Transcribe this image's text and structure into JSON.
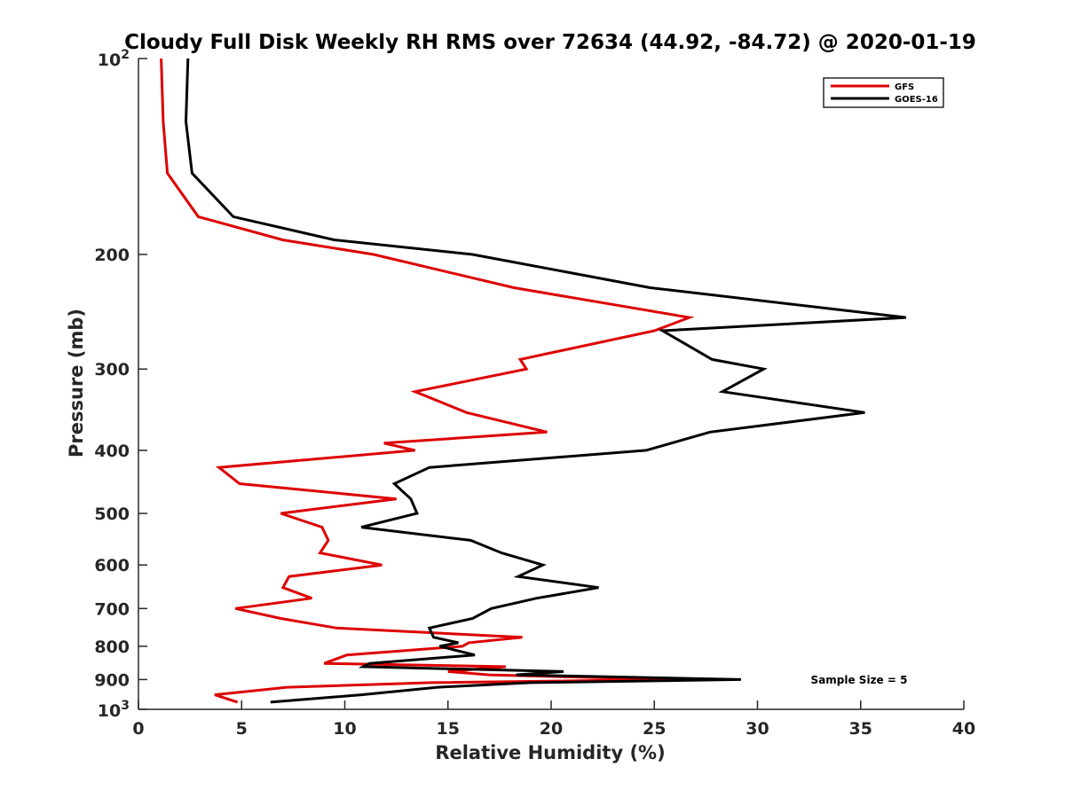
{
  "chart_data": {
    "type": "line",
    "title": "Cloudy Full Disk Weekly RH RMS over 72634 (44.92, -84.72) @ 2020-01-19",
    "xlabel": "Relative Humidity (%)",
    "ylabel": "Pressure (mb)",
    "xlim": [
      0,
      40
    ],
    "ylim": [
      100,
      1000
    ],
    "y_scale": "log",
    "y_reversed": true,
    "x_ticks": [
      0,
      5,
      10,
      15,
      20,
      25,
      30,
      35,
      40
    ],
    "x_tick_labels": [
      "0",
      "5",
      "10",
      "15",
      "20",
      "25",
      "30",
      "35",
      "40"
    ],
    "y_ticks": [
      100,
      200,
      300,
      400,
      500,
      600,
      700,
      800,
      900,
      1000
    ],
    "y_tick_labels": [
      "",
      "200",
      "300",
      "400",
      "500",
      "600",
      "700",
      "800",
      "900",
      ""
    ],
    "y_tick_power_labels": [
      {
        "value": 100,
        "base": "10",
        "exp": "2"
      },
      {
        "value": 1000,
        "base": "10",
        "exp": "3"
      }
    ],
    "grid": false,
    "legend_position": "top-right",
    "annotation": "Sample Size = 5",
    "series": [
      {
        "name": "GFS",
        "color": "#dd0000",
        "points": [
          [
            1.1,
            100
          ],
          [
            1.2,
            125
          ],
          [
            1.4,
            150
          ],
          [
            2.9,
            175
          ],
          [
            7.0,
            190
          ],
          [
            11.4,
            200
          ],
          [
            18.2,
            225
          ],
          [
            26.7,
            250
          ],
          [
            25.0,
            262
          ],
          [
            18.5,
            290
          ],
          [
            18.8,
            300
          ],
          [
            13.4,
            325
          ],
          [
            15.9,
            350
          ],
          [
            19.8,
            375
          ],
          [
            11.9,
            390
          ],
          [
            13.4,
            400
          ],
          [
            3.9,
            425
          ],
          [
            4.9,
            450
          ],
          [
            12.5,
            475
          ],
          [
            6.9,
            500
          ],
          [
            8.9,
            525
          ],
          [
            9.2,
            550
          ],
          [
            8.8,
            575
          ],
          [
            11.8,
            600
          ],
          [
            7.3,
            625
          ],
          [
            7.0,
            650
          ],
          [
            8.4,
            675
          ],
          [
            4.7,
            700
          ],
          [
            6.9,
            725
          ],
          [
            9.6,
            750
          ],
          [
            18.6,
            775
          ],
          [
            16.0,
            790
          ],
          [
            15.7,
            800
          ],
          [
            10.1,
            825
          ],
          [
            9.0,
            850
          ],
          [
            17.8,
            860
          ],
          [
            15.0,
            875
          ],
          [
            17.0,
            885
          ],
          [
            26.0,
            900
          ],
          [
            14.2,
            910
          ],
          [
            7.2,
            925
          ],
          [
            3.7,
            950
          ],
          [
            4.8,
            975
          ]
        ]
      },
      {
        "name": "GOES-16",
        "color": "#000000",
        "points": [
          [
            2.4,
            100
          ],
          [
            2.3,
            125
          ],
          [
            2.6,
            150
          ],
          [
            4.6,
            175
          ],
          [
            9.5,
            190
          ],
          [
            16.2,
            200
          ],
          [
            24.8,
            225
          ],
          [
            37.2,
            250
          ],
          [
            25.4,
            262
          ],
          [
            27.8,
            290
          ],
          [
            30.3,
            300
          ],
          [
            28.3,
            325
          ],
          [
            35.2,
            350
          ],
          [
            27.7,
            375
          ],
          [
            24.6,
            400
          ],
          [
            14.1,
            425
          ],
          [
            12.4,
            450
          ],
          [
            13.2,
            475
          ],
          [
            13.5,
            500
          ],
          [
            10.8,
            525
          ],
          [
            16.1,
            550
          ],
          [
            17.6,
            575
          ],
          [
            19.6,
            600
          ],
          [
            18.4,
            625
          ],
          [
            22.3,
            650
          ],
          [
            19.3,
            675
          ],
          [
            17.1,
            700
          ],
          [
            16.2,
            725
          ],
          [
            14.1,
            750
          ],
          [
            14.3,
            775
          ],
          [
            15.5,
            790
          ],
          [
            14.6,
            800
          ],
          [
            16.3,
            825
          ],
          [
            11.2,
            850
          ],
          [
            10.9,
            860
          ],
          [
            20.6,
            875
          ],
          [
            18.3,
            885
          ],
          [
            29.2,
            900
          ],
          [
            19.0,
            910
          ],
          [
            14.5,
            925
          ],
          [
            10.8,
            950
          ],
          [
            6.4,
            975
          ]
        ]
      }
    ]
  }
}
